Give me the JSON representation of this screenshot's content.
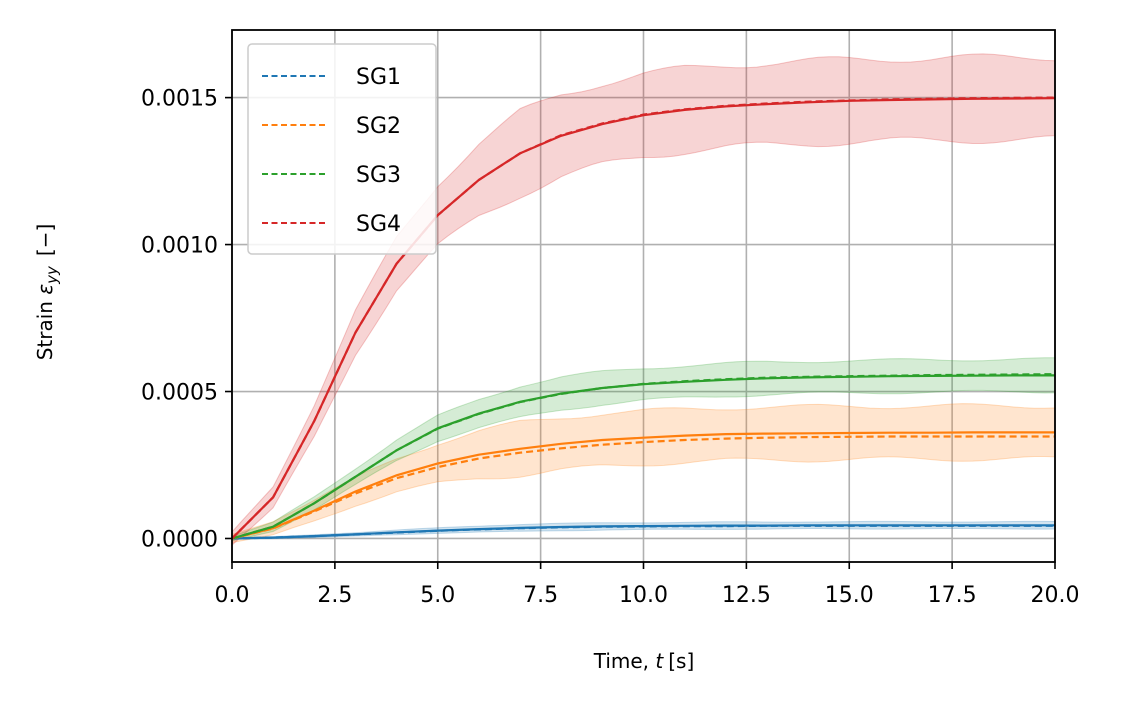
{
  "chart_data": {
    "type": "line",
    "xlabel": {
      "prefix": "Time, ",
      "var": "t",
      "unit": "[s]"
    },
    "ylabel": {
      "prefix": "Strain ",
      "var": "ε",
      "sub": "yy",
      "unit": "[−]"
    },
    "xlim": [
      0,
      20
    ],
    "ylim": [
      -8e-05,
      0.00173
    ],
    "xticks": [
      0,
      2.5,
      5,
      7.5,
      10,
      12.5,
      15,
      17.5,
      20
    ],
    "xtick_labels": [
      "0.0",
      "2.5",
      "5.0",
      "7.5",
      "10.0",
      "12.5",
      "15.0",
      "17.5",
      "20.0"
    ],
    "yticks": [
      0,
      0.0005,
      0.001,
      0.0015
    ],
    "ytick_labels": [
      "0.0000",
      "0.0005",
      "0.0010",
      "0.0015"
    ],
    "grid": true,
    "legend_position": "top-left",
    "x": [
      0,
      1,
      2,
      3,
      4,
      5,
      6,
      7,
      8,
      9,
      10,
      11,
      12,
      13,
      14,
      15,
      16,
      17,
      18,
      19,
      20
    ],
    "series": [
      {
        "name": "SG1",
        "color": "#1f77b4",
        "values": [
          0,
          3e-06,
          8e-06,
          1.4e-05,
          2.1e-05,
          2.7e-05,
          3.2e-05,
          3.6e-05,
          3.9e-05,
          4.1e-05,
          4.2e-05,
          4.3e-05,
          4.4e-05,
          4.4e-05,
          4.5e-05,
          4.5e-05,
          4.5e-05,
          4.5e-05,
          4.5e-05,
          4.5e-05,
          4.5e-05
        ],
        "predicted": [
          0,
          3e-06,
          8e-06,
          1.4e-05,
          2e-05,
          2.6e-05,
          3.1e-05,
          3.5e-05,
          3.8e-05,
          4e-05,
          4.1e-05,
          4.2e-05,
          4.2e-05,
          4.3e-05,
          4.3e-05,
          4.3e-05,
          4.3e-05,
          4.3e-05,
          4.3e-05,
          4.3e-05,
          4.3e-05
        ],
        "band": 1.2e-05
      },
      {
        "name": "SG2",
        "color": "#ff7f0e",
        "values": [
          0,
          3.5e-05,
          9.5e-05,
          0.00016,
          0.000215,
          0.000255,
          0.000285,
          0.000305,
          0.000322,
          0.000335,
          0.000343,
          0.00035,
          0.000355,
          0.000357,
          0.000358,
          0.000359,
          0.00036,
          0.00036,
          0.000361,
          0.000361,
          0.000361
        ],
        "predicted": [
          0,
          3.4e-05,
          9.2e-05,
          0.000153,
          0.000205,
          0.000243,
          0.000272,
          0.000292,
          0.000307,
          0.000319,
          0.000328,
          0.000335,
          0.00034,
          0.000343,
          0.000345,
          0.000346,
          0.000347,
          0.000347,
          0.000347,
          0.000347,
          0.000347
        ],
        "band": 9e-05
      },
      {
        "name": "SG3",
        "color": "#2ca02c",
        "values": [
          0,
          4e-05,
          0.00012,
          0.00021,
          0.0003,
          0.000375,
          0.000425,
          0.000465,
          0.000493,
          0.000512,
          0.000525,
          0.000533,
          0.00054,
          0.000545,
          0.000548,
          0.00055,
          0.000552,
          0.000553,
          0.000554,
          0.000555,
          0.000555
        ],
        "predicted": [
          0,
          4e-05,
          0.00012,
          0.00021,
          0.0003,
          0.000374,
          0.000424,
          0.000464,
          0.000492,
          0.000512,
          0.000526,
          0.000535,
          0.000542,
          0.000547,
          0.00055,
          0.000552,
          0.000554,
          0.000556,
          0.000557,
          0.000558,
          0.000559
        ],
        "band": 5.5e-05
      },
      {
        "name": "SG4",
        "color": "#d62728",
        "values": [
          0,
          0.00014,
          0.0004,
          0.0007,
          0.000935,
          0.0011,
          0.00122,
          0.00131,
          0.00137,
          0.00141,
          0.00144,
          0.001458,
          0.00147,
          0.001478,
          0.001484,
          0.001489,
          0.001492,
          0.001494,
          0.001496,
          0.001497,
          0.001498
        ],
        "predicted": [
          0,
          0.00014,
          0.0004,
          0.0007,
          0.000935,
          0.0011,
          0.00122,
          0.00131,
          0.001372,
          0.001412,
          0.001442,
          0.00146,
          0.001472,
          0.00148,
          0.001486,
          0.00149,
          0.001494,
          0.001496,
          0.001498,
          0.001499,
          0.0015
        ],
        "band": 0.00014
      }
    ]
  }
}
